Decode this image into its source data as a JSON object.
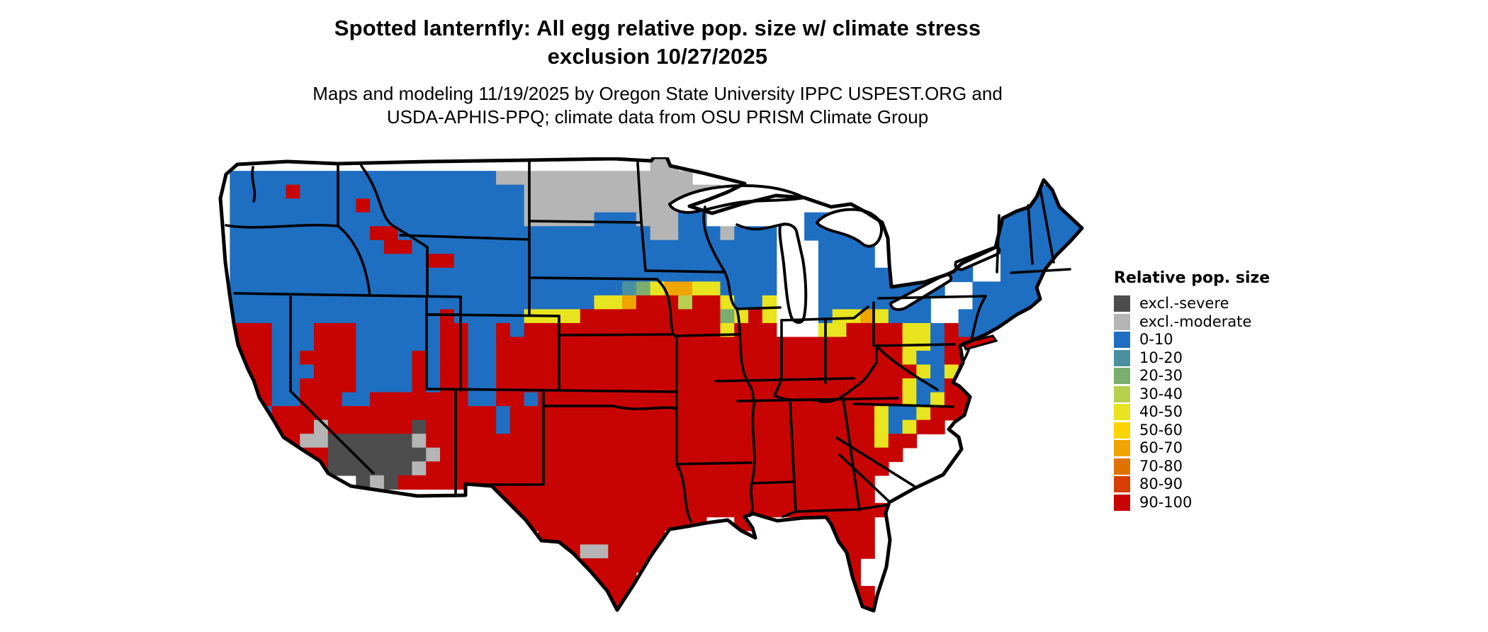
{
  "title": {
    "line1": "Spotted lanternfly: All egg relative pop. size w/ climate stress",
    "line2": "exclusion 10/27/2025"
  },
  "subtitle": {
    "line1": "Maps and modeling 11/19/2025 by Oregon State University IPPC USPEST.ORG and",
    "line2": "USDA-APHIS-PPQ; climate data from OSU PRISM Climate Group"
  },
  "legend": {
    "title": "Relative pop. size",
    "items": [
      {
        "label": "excl.-severe",
        "color": "#4d4d4d"
      },
      {
        "label": "excl.-moderate",
        "color": "#b5b5b5"
      },
      {
        "label": "0-10",
        "color": "#1e6fc2"
      },
      {
        "label": "10-20",
        "color": "#4a90a0"
      },
      {
        "label": "20-30",
        "color": "#7bad6e"
      },
      {
        "label": "30-40",
        "color": "#b8cf4e"
      },
      {
        "label": "40-50",
        "color": "#e8e41f"
      },
      {
        "label": "50-60",
        "color": "#fcd303"
      },
      {
        "label": "60-70",
        "color": "#f0a400"
      },
      {
        "label": "70-80",
        "color": "#e07200"
      },
      {
        "label": "80-90",
        "color": "#d63e04"
      },
      {
        "label": "90-100",
        "color": "#c80403"
      }
    ]
  },
  "map": {
    "background": "#ffffff",
    "border_color": "#000000",
    "lake_color": "#ffffff",
    "cols": 62,
    "rows": 34,
    "cell_codes": {
      "b": "#1e6fc2",
      "t": "#4a90a0",
      "G": "#7bad6e",
      "Y": "#b8cf4e",
      "y": "#e8e41f",
      "o": "#f0a400",
      "r": "#c80403",
      "g": "#b5b5b5",
      "d": "#4d4d4d"
    },
    "grid_rle": [
      "31.2g29.",
      "1.19b14g28.",
      "1.4b1r16b14g22.3b1.",
      "1.9b1r11b13g20.7b",
      "1.21b5g3b3g2b7.4b8.8b",
      "1.10b2r18b2g3b1g3b2.5b6.9b",
      "1.11b2r26b3.4b4.11b",
      "1.14b2r23b3.4b1.6b2.6b",
      "1.39b3.11b2.6b",
      "1.28b1t1G1y2o2y4b3.9b2.5b3.",
      "1.26b2y1o3r1Y2r1y2b1y3.8b3.5b3.",
      "1.15b1r5b4y10r1G1y1r1y3.1b2y1o1y3b2.6b3.",
      "1.3r3b3r6b2r2b1r1b14r1y3r3.2y4r2y1b1r4b5.",
      "1.3r3b3r6b2r2b29r2y1b3r7.",
      "1.3r2b4r4b1r1b2r2b29r1y2b2r8.",
      "1.3r3b3r4b1r1b2r2b30r1y1b1y1r8.",
      "1.3r2b4r4b1r1b2r2b29r1y2b2r8.",
      "1.3r2b3r2b7r2b2r1b26r1y1b1y2r8.",
      "1.2r1b16r1b26r1y2b1y3r8.",
      "1.6r1g6r1d5r1b26r1y1b1y2r10.",
      "2.4r2g6d1g32r1y2r12.",
      "3.5r7d1g33r13.",
      "4.4r6d1g33r14.",
      "10.1d1g1d34r15.",
      "19.28r15.",
      "21.27r14.",
      "22.13r2.2r4.4r15.",
      "23.9r11.4r15.",
      "24.2r2g4r11.4r15.",
      "25.1g5r12.3r16.",
      "26.4r13.3r16.",
      "27.3r14.3r15.",
      "28.2r15.2r15.",
      "43.1r1.1r16."
    ]
  }
}
